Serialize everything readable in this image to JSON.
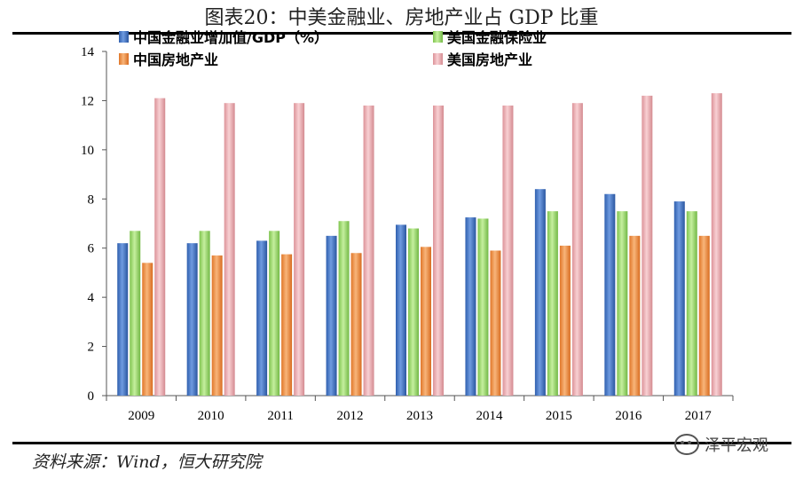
{
  "title": "图表20：中美金融业、房地产业占 GDP 比重",
  "source": "资料来源：Wind，恒大研究院",
  "watermark": "泽平宏观",
  "chart_data": {
    "type": "bar",
    "title": "图表20：中美金融业、房地产业占 GDP 比重",
    "xlabel": "",
    "ylabel": "",
    "ylim": [
      0,
      14
    ],
    "yticks": [
      0,
      2,
      4,
      6,
      8,
      10,
      12,
      14
    ],
    "grid": false,
    "legend_position": "top-left",
    "categories": [
      "2009",
      "2010",
      "2011",
      "2012",
      "2013",
      "2014",
      "2015",
      "2016",
      "2017"
    ],
    "series": [
      {
        "name": "中国金融业增加值/GDP（%）",
        "color": "#3a6fc4",
        "values": [
          6.2,
          6.2,
          6.3,
          6.5,
          6.95,
          7.25,
          8.4,
          8.2,
          7.9
        ]
      },
      {
        "name": "美国金融保险业",
        "color": "#9bd86a",
        "values": [
          6.7,
          6.7,
          6.7,
          7.1,
          6.8,
          7.2,
          7.5,
          7.5,
          7.5
        ]
      },
      {
        "name": "中国房地产业",
        "color": "#f08c3c",
        "values": [
          5.4,
          5.7,
          5.75,
          5.8,
          6.05,
          5.9,
          6.1,
          6.5,
          6.5
        ]
      },
      {
        "name": "美国房地产业",
        "color": "#eaaaae",
        "values": [
          12.1,
          11.9,
          11.9,
          11.8,
          11.8,
          11.8,
          11.9,
          12.2,
          12.3
        ]
      }
    ]
  }
}
